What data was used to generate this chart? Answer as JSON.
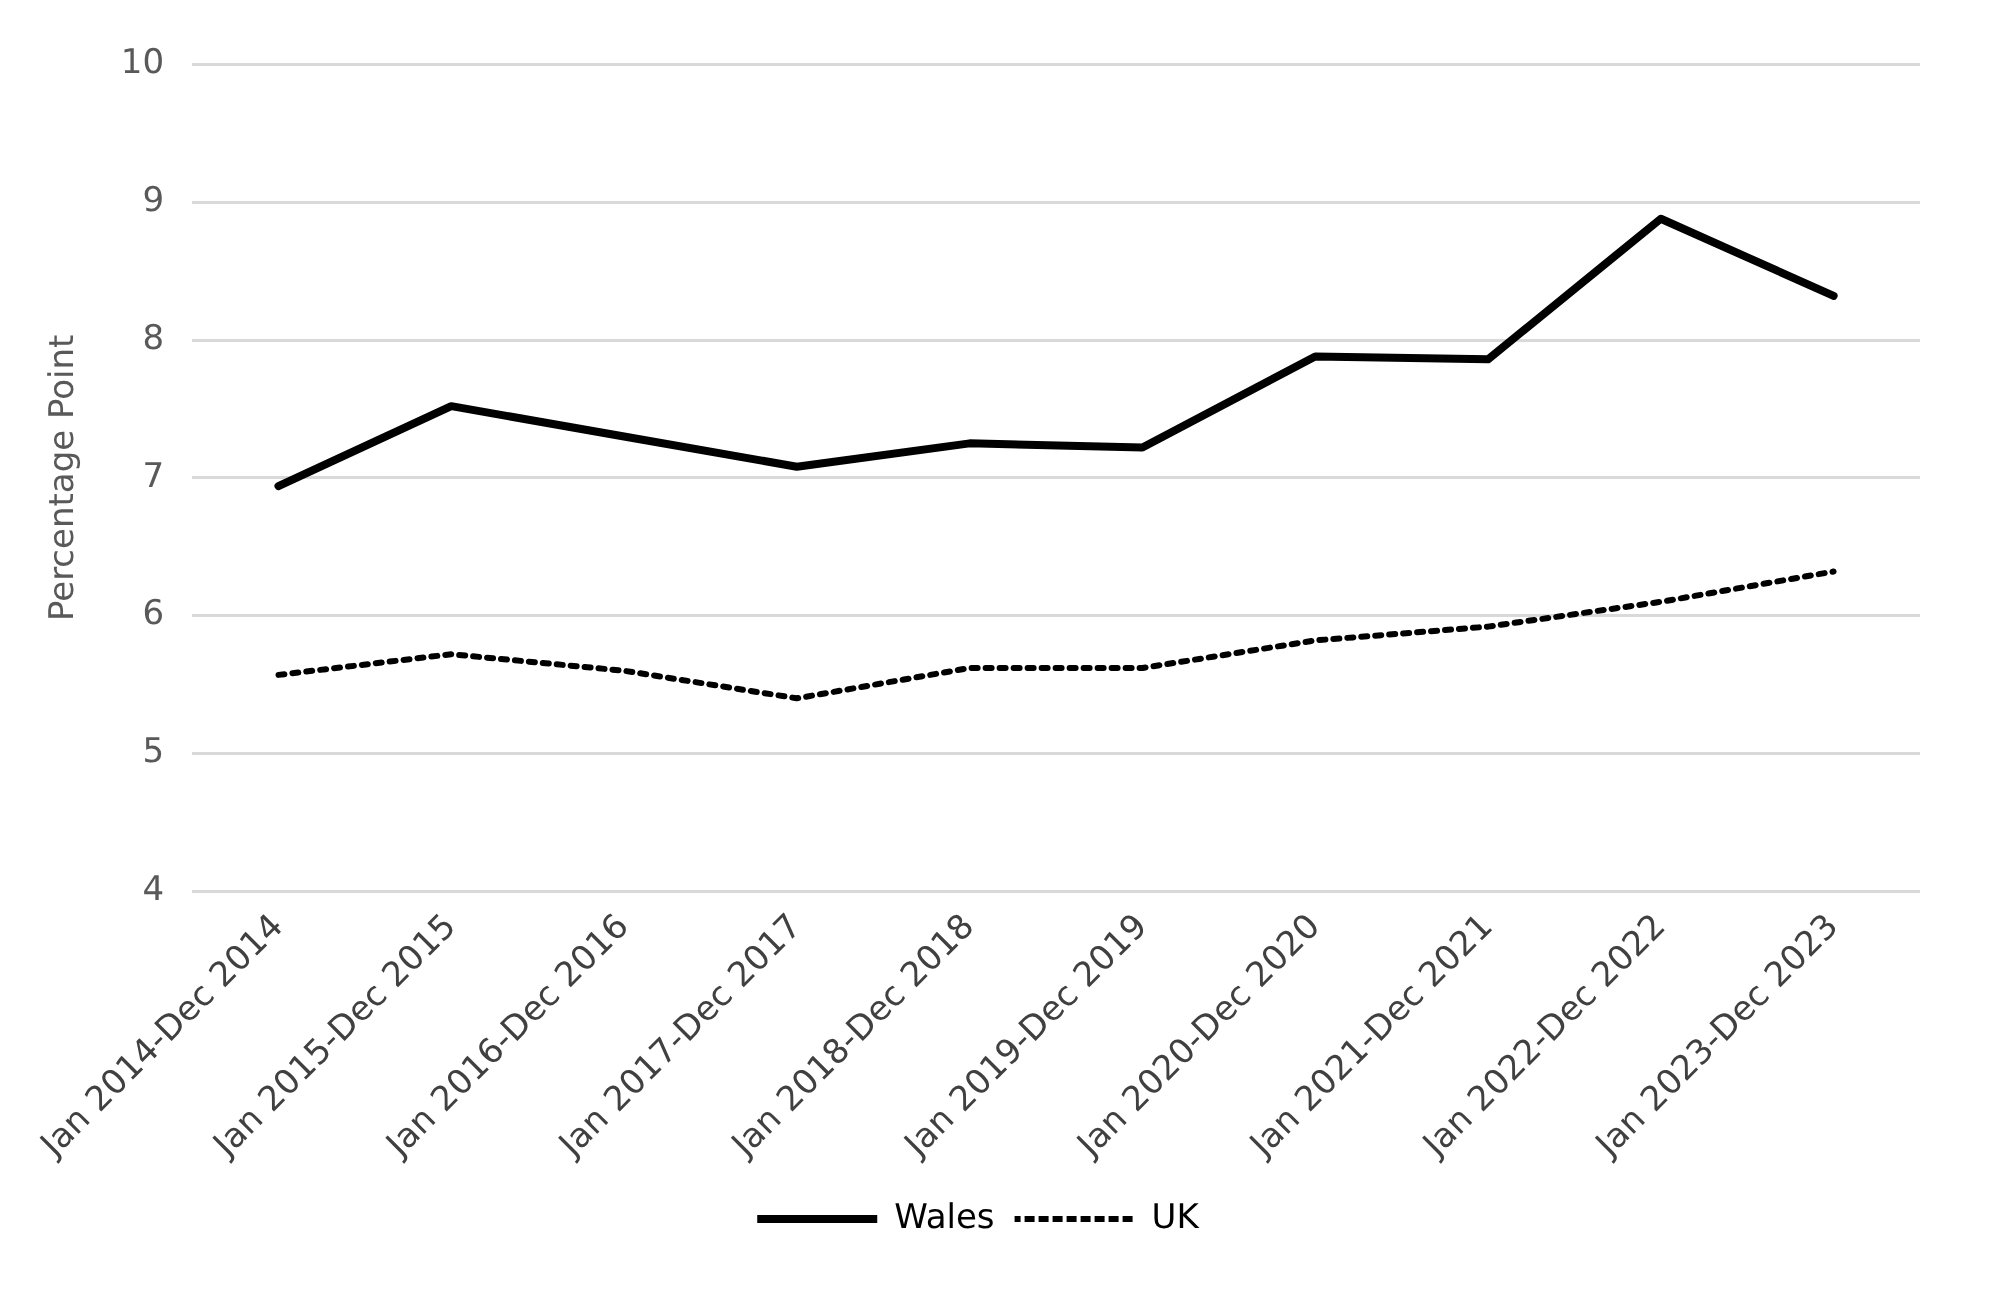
{
  "chart_data": {
    "type": "line",
    "ylabel": "Percentage Point",
    "categories": [
      "Jan 2014-Dec 2014",
      "Jan 2015-Dec 2015",
      "Jan 2016-Dec 2016",
      "Jan 2017-Dec 2017",
      "Jan 2018-Dec 2018",
      "Jan 2019-Dec 2019",
      "Jan 2020-Dec 2020",
      "Jan 2021-Dec 2021",
      "Jan 2022-Dec 2022",
      "Jan 2023-Dec 2023"
    ],
    "series": [
      {
        "name": "Wales",
        "color": "#000000",
        "line_style": "solid",
        "values": [
          6.94,
          7.52,
          7.3,
          7.08,
          7.25,
          7.22,
          7.88,
          7.86,
          8.88,
          8.32
        ]
      },
      {
        "name": "UK",
        "color": "#000000",
        "line_style": "dotted",
        "values": [
          5.57,
          5.72,
          5.6,
          5.4,
          5.62,
          5.62,
          5.82,
          5.92,
          6.1,
          6.32
        ]
      }
    ],
    "ylim": [
      4,
      10
    ],
    "yticks": [
      4,
      5,
      6,
      7,
      8,
      9,
      10
    ],
    "grid": "y",
    "legend": "bottom",
    "marker": "none"
  }
}
